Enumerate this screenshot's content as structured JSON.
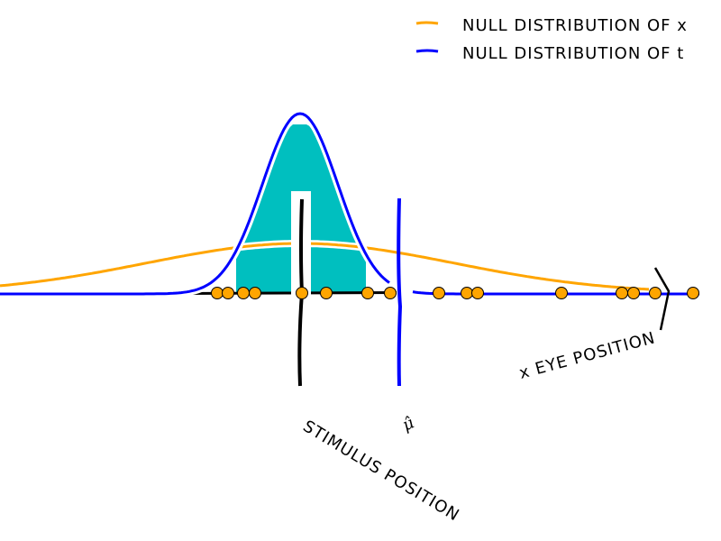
{
  "legend": {
    "position": "top-right",
    "items": [
      {
        "label": "NULL DISTRIBUTION OF x",
        "color": "#FFA500"
      },
      {
        "label": "NULL DISTRIBUTION OF t",
        "color": "#0000FF"
      }
    ]
  },
  "annotations": {
    "stimulus_position": "STIMULUS POSITION",
    "mu_hat": "μ̂",
    "eye_position": "x EYE POSITION"
  },
  "colors": {
    "fill": "#00BFBF",
    "samples": "#FFA500",
    "t_distribution": "#0000FF",
    "x_distribution": "#FFA500",
    "stimulus_line": "#000000",
    "estimate_line": "#0000FF"
  }
}
